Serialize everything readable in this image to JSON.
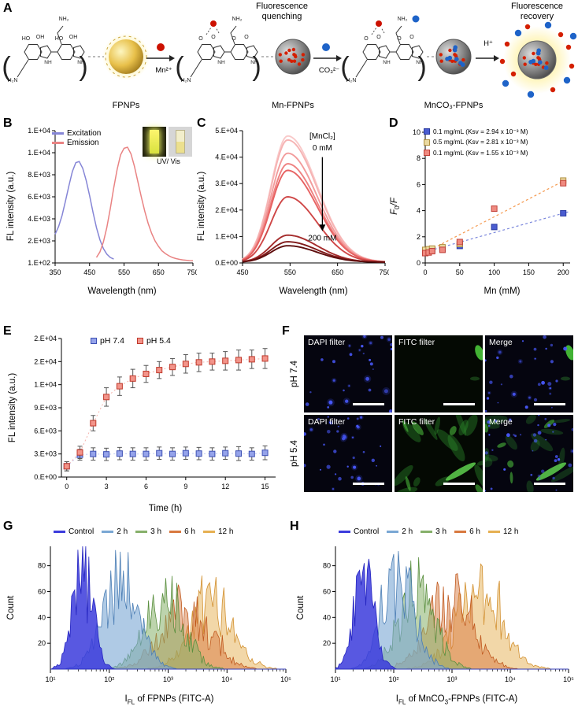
{
  "letters": [
    "A",
    "B",
    "C",
    "D",
    "E",
    "F",
    "G",
    "H"
  ],
  "panelA": {
    "caption_quenching": "Fluorescence quenching",
    "caption_recovery": "Fluorescence recovery",
    "label_fpnps": "FPNPs",
    "label_mnfpnps": "Mn-FPNPs",
    "label_mnco3": "MnCO₃-FPNPs",
    "ion_mn": "Mn²⁺",
    "ion_co3": "CO₃²⁻",
    "ion_h": "H⁺",
    "chem": {
      "h2n": "H₂N",
      "nh2": "NH₂",
      "nh": "NH",
      "ho": "HO",
      "oh": "OH",
      "o": "O"
    }
  },
  "inset": {
    "caption": "UV/ Vis"
  },
  "panelF": {
    "cols": [
      "DAPI filter",
      "FITC filter",
      "Merge"
    ],
    "rows": [
      "pH 7.4",
      "pH 5.4"
    ]
  },
  "chart_data": [
    {
      "id": "B",
      "type": "line",
      "xlabel": "Wavelength (nm)",
      "ylabel": "FL intensity (a.u.)",
      "xlim": [
        350,
        750
      ],
      "xticks": [
        350,
        450,
        550,
        650,
        750
      ],
      "ylim": [
        0,
        12000
      ],
      "ytick_labels": [
        "1.E+02",
        "2.E+03",
        "4.E+03",
        "6.E+03",
        "8.E+03",
        "1.E+04",
        "1.E+04"
      ],
      "series": [
        {
          "name": "Excitation",
          "color": "#8585d6",
          "x": [
            350,
            360,
            370,
            380,
            390,
            400,
            410,
            420,
            430,
            440,
            450,
            460,
            470,
            480,
            490,
            500,
            510,
            520
          ],
          "y": [
            2600,
            3300,
            4300,
            5600,
            7000,
            8300,
            9100,
            9200,
            8600,
            7500,
            6100,
            4600,
            3200,
            2100,
            1300,
            800,
            500,
            350
          ]
        },
        {
          "name": "Emission",
          "color": "#e98383",
          "x": [
            470,
            480,
            490,
            500,
            510,
            520,
            530,
            540,
            550,
            560,
            570,
            580,
            590,
            600,
            610,
            620,
            630,
            640,
            650,
            660,
            670,
            680,
            690,
            700,
            710,
            720,
            730,
            740,
            750
          ],
          "y": [
            500,
            1000,
            1900,
            3200,
            4900,
            6800,
            8500,
            9800,
            10400,
            10500,
            9900,
            8800,
            7400,
            6000,
            4700,
            3600,
            2700,
            2000,
            1500,
            1100,
            850,
            650,
            500,
            400,
            330,
            280,
            240,
            210,
            190
          ]
        }
      ]
    },
    {
      "id": "C",
      "type": "line-family",
      "xlabel": "Wavelength (nm)",
      "ylabel": "FL intensity (a.u.)",
      "xlim": [
        450,
        750
      ],
      "xticks": [
        450,
        550,
        650,
        750
      ],
      "ylim": [
        0,
        50000
      ],
      "ytick_labels": [
        "0.E+00",
        "1.E+04",
        "2.E+04",
        "3.E+04",
        "4.E+04",
        "5.E+04"
      ],
      "peak_wavelength": 545,
      "sigma_left": 35,
      "sigma_right": 62,
      "annotation": {
        "line1": "[MnCl₂]",
        "start": "0 mM",
        "end": "200 mM"
      },
      "series": [
        {
          "peak": 48000,
          "color": "#f9c9c9"
        },
        {
          "peak": 46500,
          "color": "#f6b3b3"
        },
        {
          "peak": 41500,
          "color": "#f29b9b"
        },
        {
          "peak": 37500,
          "color": "#ee8181"
        },
        {
          "peak": 35000,
          "color": "#e76262"
        },
        {
          "peak": 25000,
          "color": "#cf4747"
        },
        {
          "peak": 10500,
          "color": "#a52c2c"
        },
        {
          "peak": 8000,
          "color": "#801a1a"
        },
        {
          "peak": 6500,
          "color": "#5e0e0e"
        }
      ]
    },
    {
      "id": "D",
      "type": "scatter",
      "xlabel": "Mn (mM)",
      "ylabel_pre": "F",
      "ylabel_sub": "0",
      "ylabel_post": "/F",
      "xlim": [
        0,
        210
      ],
      "xticks": [
        0,
        50,
        100,
        150,
        200
      ],
      "ylim": [
        0,
        10
      ],
      "yticks": [
        0,
        2,
        4,
        6,
        8,
        10
      ],
      "series": [
        {
          "name": "0.1 mg/mL",
          "legend": "0.1 mg/mL (Ksv = 2.94 x 10⁻³ M)",
          "color": "#4a5cd0",
          "stroke": "#2a3aa0",
          "x": [
            0,
            5,
            10,
            25,
            50,
            100,
            200
          ],
          "y": [
            0.95,
            1.0,
            1.0,
            1.05,
            1.3,
            2.75,
            3.8
          ]
        },
        {
          "name": "0.5 mg/mL",
          "legend": "0.5 mg/mL (Ksv = 2.81 x 10⁻³ M)",
          "color": "#ead9a0",
          "stroke": "#b09040",
          "x": [
            0,
            5,
            10,
            25,
            50,
            200
          ],
          "y": [
            1.0,
            1.05,
            1.1,
            1.2,
            1.45,
            6.3
          ]
        },
        {
          "name": "0.1 mg/mL",
          "legend": "0.1 mg/mL (Ksv = 1.55 x 10⁻³ M)",
          "color": "#ef8a80",
          "stroke": "#c04038",
          "x": [
            0,
            5,
            10,
            25,
            50,
            100,
            200
          ],
          "y": [
            0.75,
            0.8,
            0.9,
            1.0,
            1.6,
            4.15,
            6.1
          ]
        }
      ],
      "trend_lines": [
        {
          "color": "#7a86dc",
          "x": [
            0,
            207
          ],
          "y": [
            0.85,
            3.9
          ]
        },
        {
          "color": "#f59a50",
          "x": [
            0,
            207
          ],
          "y": [
            0.8,
            6.45
          ]
        }
      ]
    },
    {
      "id": "E",
      "type": "line-error",
      "xlabel": "Time (h)",
      "ylabel": "FL intensity (a.u.)",
      "xlim": [
        -0.4,
        15.8
      ],
      "xticks": [
        0,
        3,
        6,
        9,
        12,
        15
      ],
      "ylim": [
        0,
        18000
      ],
      "ytick_labels": [
        "0.E+00",
        "3.E+03",
        "6.E+03",
        "9.E+03",
        "1.E+04",
        "2.E+04",
        "2.E+04"
      ],
      "series": [
        {
          "name": "pH 7.4",
          "color": "#95a3ea",
          "stroke": "#3c50b4",
          "x": [
            0,
            1,
            2,
            3,
            4,
            5,
            6,
            7,
            8,
            9,
            10,
            11,
            12,
            13,
            14,
            15
          ],
          "y": [
            1400,
            2900,
            3000,
            2950,
            3050,
            3000,
            3000,
            3100,
            3000,
            3100,
            3050,
            3000,
            3100,
            3050,
            3000,
            3150
          ],
          "err": [
            600,
            700,
            800,
            800,
            800,
            800,
            800,
            800,
            800,
            800,
            800,
            800,
            800,
            900,
            800,
            900
          ]
        },
        {
          "name": "pH 5.4",
          "color": "#f2948a",
          "stroke": "#c0392b",
          "trend": true,
          "x": [
            0,
            1,
            2,
            3,
            4,
            5,
            6,
            7,
            8,
            9,
            10,
            11,
            12,
            13,
            14,
            15
          ],
          "y": [
            1400,
            3200,
            7000,
            10400,
            11800,
            12800,
            13400,
            13900,
            14300,
            14700,
            14900,
            15000,
            15100,
            15200,
            15300,
            15400
          ],
          "err": [
            600,
            800,
            1000,
            1200,
            1200,
            1200,
            1100,
            1100,
            1100,
            1200,
            1200,
            1100,
            1200,
            1300,
            1200,
            1300
          ]
        }
      ]
    },
    {
      "id": "G",
      "type": "flow-histogram",
      "xlabel_pre": "I",
      "xlabel_sub": "FL",
      "xlabel_post_a": " of FPNPs (FITC-A)",
      "xlabel_sub2": "",
      "xlabel_post_b": "",
      "ylabel": "Count",
      "xlog_range": [
        1,
        5
      ],
      "xtick_labels": [
        "10¹",
        "10²",
        "10³",
        "10⁴",
        "10⁵"
      ],
      "yticks": [
        20,
        40,
        60,
        80
      ],
      "ymax": 95,
      "series": [
        {
          "name": "Control",
          "color": "#3b3bdc",
          "stroke": "#2525c0",
          "opacity": 0.85,
          "log_mean": 1.55,
          "log_sigma": 0.17,
          "peak": 85
        },
        {
          "name": "2 h",
          "color": "#7aa7d4",
          "stroke": "#4d7fb5",
          "opacity": 0.6,
          "log_mean": 2.2,
          "log_sigma": 0.3,
          "peak": 76
        },
        {
          "name": "3 h",
          "color": "#86b06a",
          "stroke": "#5a8f3f",
          "opacity": 0.55,
          "log_mean": 2.95,
          "log_sigma": 0.32,
          "peak": 66
        },
        {
          "name": "6 h",
          "color": "#d8793f",
          "stroke": "#c05a20",
          "opacity": 0.5,
          "log_mean": 3.3,
          "log_sigma": 0.4,
          "peak": 52
        },
        {
          "name": "12 h",
          "color": "#e6b052",
          "stroke": "#d29030",
          "opacity": 0.5,
          "log_mean": 3.75,
          "log_sigma": 0.36,
          "peak": 58
        }
      ]
    },
    {
      "id": "H",
      "type": "flow-histogram",
      "xlabel_pre": "I",
      "xlabel_sub": "FL",
      "xlabel_post_a": " of MnCO",
      "xlabel_sub2": "3",
      "xlabel_post_b": "-FPNPs (FITC-A)",
      "ylabel": "Count",
      "xlog_range": [
        1,
        5
      ],
      "xtick_labels": [
        "10¹",
        "10²",
        "10³",
        "10⁴",
        "10⁵"
      ],
      "yticks": [
        20,
        40,
        60,
        80
      ],
      "ymax": 95,
      "series": [
        {
          "name": "Control",
          "color": "#3b3bdc",
          "stroke": "#2525c0",
          "opacity": 0.85,
          "log_mean": 1.5,
          "log_sigma": 0.17,
          "peak": 85
        },
        {
          "name": "2 h",
          "color": "#7aa7d4",
          "stroke": "#4d7fb5",
          "opacity": 0.6,
          "log_mean": 2.1,
          "log_sigma": 0.27,
          "peak": 80
        },
        {
          "name": "3 h",
          "color": "#86b06a",
          "stroke": "#5a8f3f",
          "opacity": 0.55,
          "log_mean": 2.4,
          "log_sigma": 0.3,
          "peak": 72
        },
        {
          "name": "6 h",
          "color": "#d8793f",
          "stroke": "#c05a20",
          "opacity": 0.5,
          "log_mean": 2.95,
          "log_sigma": 0.38,
          "peak": 62
        },
        {
          "name": "12 h",
          "color": "#e6b052",
          "stroke": "#d29030",
          "opacity": 0.5,
          "log_mean": 3.45,
          "log_sigma": 0.4,
          "peak": 65
        }
      ]
    }
  ]
}
